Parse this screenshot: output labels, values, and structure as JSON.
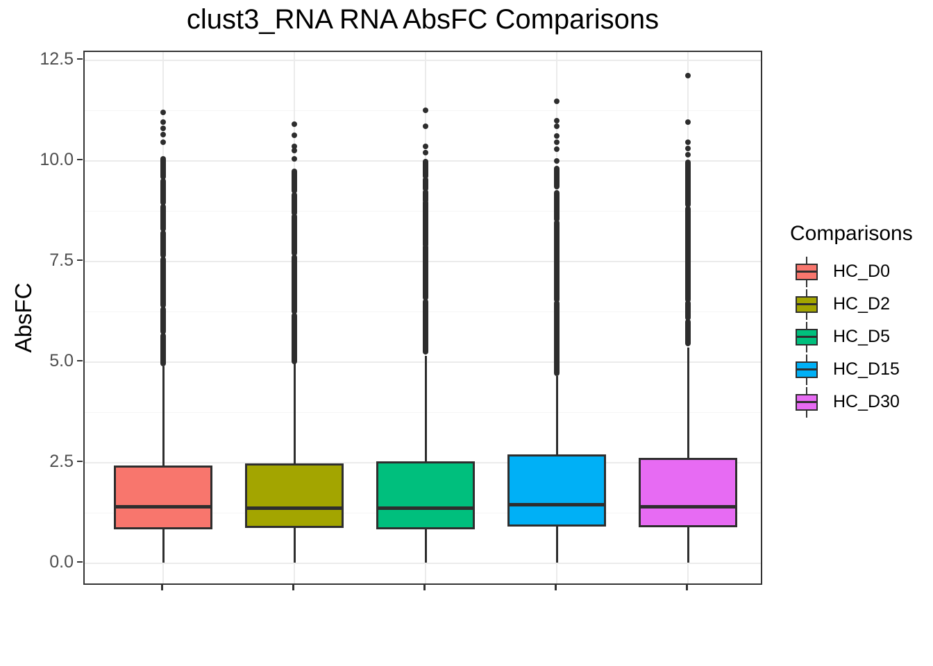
{
  "colors": {
    "stroke": "#2e2e2e",
    "outlier": "#2d2d2d",
    "grid_major": "#ebebeb",
    "grid_minor": "#f5f5f5",
    "panel_border": "#333333",
    "axis_text": "#4d4d4d",
    "tick_mark": "#333333",
    "background": "#ffffff"
  },
  "chart_data": {
    "type": "boxplot",
    "title": "clust3_RNA RNA AbsFC Comparisons",
    "ylabel": "AbsFC",
    "xlabel": "",
    "legend_title": "Comparisons",
    "legend_position": "right",
    "grid": true,
    "ylim": [
      -0.6,
      12.7
    ],
    "y_ticks": {
      "values": [
        0,
        2.5,
        5,
        7.5,
        10,
        12.5
      ],
      "labels": [
        "0.0",
        "2.5",
        "5.0",
        "7.5",
        "10.0",
        "12.5"
      ]
    },
    "y_minor_gridlines": [
      1.25,
      3.75,
      6.25,
      8.75,
      11.25
    ],
    "x_tick_labels": [
      "",
      "",
      "",
      "",
      ""
    ],
    "categories": [
      "HC_D0",
      "HC_D2",
      "HC_D5",
      "HC_D15",
      "HC_D30"
    ],
    "series": [
      {
        "name": "HC_D0",
        "color": "#F8766D",
        "q1": 0.83,
        "median": 1.39,
        "q3": 2.43,
        "whisker_low": 0.0,
        "whisker_high": 4.88,
        "outlier_runs": [
          [
            4.95,
            5.65
          ],
          [
            5.75,
            6.3
          ],
          [
            6.4,
            7.55
          ],
          [
            7.65,
            8.2
          ],
          [
            8.3,
            8.85
          ],
          [
            8.95,
            9.5
          ],
          [
            9.6,
            10.05
          ]
        ],
        "outlier_points": [
          10.45,
          10.65,
          10.8,
          10.95,
          11.2
        ]
      },
      {
        "name": "HC_D2",
        "color": "#A3A500",
        "q1": 0.87,
        "median": 1.36,
        "q3": 2.48,
        "whisker_low": 0.0,
        "whisker_high": 4.95,
        "outlier_runs": [
          [
            5.0,
            6.15
          ],
          [
            6.25,
            7.6
          ],
          [
            7.7,
            8.62
          ],
          [
            8.7,
            9.15
          ],
          [
            9.25,
            9.74
          ]
        ],
        "outlier_points": [
          10.05,
          10.25,
          10.35,
          10.63,
          10.9
        ]
      },
      {
        "name": "HC_D5",
        "color": "#00BF7D",
        "q1": 0.84,
        "median": 1.36,
        "q3": 2.53,
        "whisker_low": 0.0,
        "whisker_high": 5.15,
        "outlier_runs": [
          [
            5.25,
            6.5
          ],
          [
            6.6,
            7.85
          ],
          [
            7.9,
            8.95
          ],
          [
            9.0,
            9.22
          ],
          [
            9.3,
            9.52
          ],
          [
            9.62,
            9.97
          ]
        ],
        "outlier_points": [
          10.2,
          10.35,
          10.85,
          11.25
        ]
      },
      {
        "name": "HC_D15",
        "color": "#00B0F6",
        "q1": 0.91,
        "median": 1.44,
        "q3": 2.7,
        "whisker_low": 0.0,
        "whisker_high": 4.65,
        "outlier_runs": [
          [
            4.72,
            6.45
          ],
          [
            6.55,
            8.45
          ],
          [
            8.55,
            9.2
          ],
          [
            9.35,
            9.8
          ]
        ],
        "outlier_points": [
          10.0,
          10.28,
          10.45,
          10.62,
          10.85,
          11.0,
          11.48
        ]
      },
      {
        "name": "HC_D30",
        "color": "#E76BF3",
        "q1": 0.89,
        "median": 1.4,
        "q3": 2.61,
        "whisker_low": 0.0,
        "whisker_high": 5.35,
        "outlier_runs": [
          [
            5.45,
            6.0
          ],
          [
            6.1,
            6.45
          ],
          [
            6.55,
            8.8
          ],
          [
            8.9,
            9.95
          ]
        ],
        "outlier_points": [
          10.15,
          10.3,
          10.45,
          10.96,
          12.11
        ]
      }
    ]
  }
}
